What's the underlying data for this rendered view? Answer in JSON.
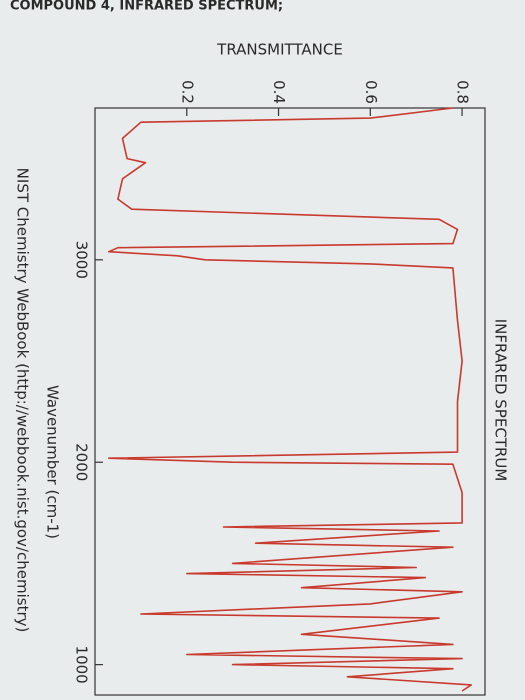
{
  "chart_data": {
    "type": "line",
    "header": "COMPOUND 4, INFRARED SPECTRUM;",
    "title": "INFRARED SPECTRUM",
    "y_label": "TRANSMITTANCE",
    "x_label": "Wavenumber (cm-1)",
    "source": "NIST Chemistry WebBook (http://webbook.nist.gov/chemistry)",
    "color": "#c83a2e",
    "x": [
      3750,
      3700,
      3680,
      3600,
      3500,
      3480,
      3400,
      3300,
      3250,
      3200,
      3150,
      3080,
      3060,
      3040,
      3020,
      3000,
      2980,
      2960,
      2700,
      2500,
      2300,
      2050,
      2020,
      2000,
      1990,
      1850,
      1700,
      1680,
      1660,
      1600,
      1580,
      1500,
      1480,
      1450,
      1430,
      1380,
      1360,
      1300,
      1250,
      1230,
      1150,
      1100,
      1050,
      1030,
      1000,
      980,
      940,
      900,
      870
    ],
    "values": [
      0.78,
      0.6,
      0.1,
      0.06,
      0.07,
      0.11,
      0.06,
      0.05,
      0.08,
      0.75,
      0.79,
      0.78,
      0.05,
      0.03,
      0.18,
      0.24,
      0.6,
      0.78,
      0.79,
      0.8,
      0.79,
      0.79,
      0.03,
      0.3,
      0.78,
      0.8,
      0.8,
      0.28,
      0.75,
      0.35,
      0.78,
      0.3,
      0.7,
      0.2,
      0.72,
      0.45,
      0.8,
      0.6,
      0.1,
      0.75,
      0.45,
      0.78,
      0.2,
      0.8,
      0.3,
      0.78,
      0.55,
      0.82,
      0.8
    ],
    "xlim": [
      3750,
      850
    ],
    "xticks": [
      3000,
      2000,
      1000
    ],
    "ylim": [
      0,
      0.85
    ],
    "yticks": [
      0.2,
      0.4,
      0.6,
      0.8
    ]
  }
}
